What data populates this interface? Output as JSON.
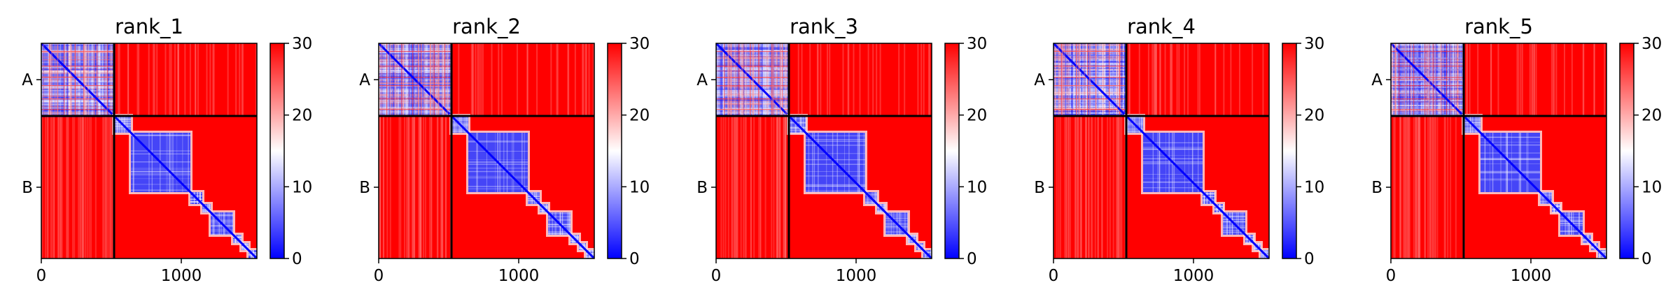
{
  "chart_data": [
    {
      "type": "heatmap",
      "title": "rank_1",
      "x_ticks": [
        0,
        1000
      ],
      "y_ticks": [
        "A",
        "B"
      ],
      "x_range": [
        0,
        1540
      ],
      "chain_lengths": [
        520,
        1020
      ],
      "colorbar": {
        "min": 0,
        "max": 30,
        "ticks": [
          0,
          10,
          20,
          30
        ],
        "colors": [
          "#0000ff",
          "#ffffff",
          "#ff0000"
        ]
      }
    },
    {
      "type": "heatmap",
      "title": "rank_2",
      "x_ticks": [
        0,
        1000
      ],
      "y_ticks": [
        "A",
        "B"
      ],
      "x_range": [
        0,
        1540
      ],
      "chain_lengths": [
        520,
        1020
      ],
      "colorbar": {
        "min": 0,
        "max": 30,
        "ticks": [
          0,
          10,
          20,
          30
        ],
        "colors": [
          "#0000ff",
          "#ffffff",
          "#ff0000"
        ]
      }
    },
    {
      "type": "heatmap",
      "title": "rank_3",
      "x_ticks": [
        0,
        1000
      ],
      "y_ticks": [
        "A",
        "B"
      ],
      "x_range": [
        0,
        1540
      ],
      "chain_lengths": [
        520,
        1020
      ],
      "colorbar": {
        "min": 0,
        "max": 30,
        "ticks": [
          0,
          10,
          20,
          30
        ],
        "colors": [
          "#0000ff",
          "#ffffff",
          "#ff0000"
        ]
      }
    },
    {
      "type": "heatmap",
      "title": "rank_4",
      "x_ticks": [
        0,
        1000
      ],
      "y_ticks": [
        "A",
        "B"
      ],
      "x_range": [
        0,
        1540
      ],
      "chain_lengths": [
        520,
        1020
      ],
      "colorbar": {
        "min": 0,
        "max": 30,
        "ticks": [
          0,
          10,
          20,
          30
        ],
        "colors": [
          "#0000ff",
          "#ffffff",
          "#ff0000"
        ]
      }
    },
    {
      "type": "heatmap",
      "title": "rank_5",
      "x_ticks": [
        0,
        1000
      ],
      "y_ticks": [
        "A",
        "B"
      ],
      "x_range": [
        0,
        1540
      ],
      "chain_lengths": [
        520,
        1020
      ],
      "colorbar": {
        "min": 0,
        "max": 30,
        "ticks": [
          0,
          10,
          20,
          30
        ],
        "colors": [
          "#0000ff",
          "#ffffff",
          "#ff0000"
        ]
      }
    }
  ]
}
